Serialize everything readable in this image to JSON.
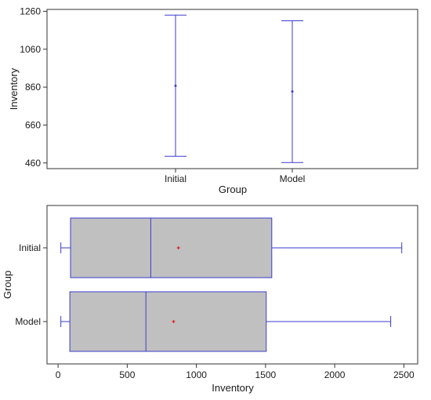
{
  "colors": {
    "series": "#3b3bcf",
    "mean_marker": "#e02020",
    "box_fill": "#c0c0c0",
    "frame": "#333333"
  },
  "chart_data": [
    {
      "type": "interval",
      "xlabel": "Group",
      "ylabel": "Inventory",
      "categories": [
        "Initial",
        "Model"
      ],
      "ylim": [
        430,
        1270
      ],
      "yticks": [
        460,
        660,
        860,
        1060,
        1260
      ],
      "series": [
        {
          "lower": [
            495,
            462
          ],
          "upper": [
            1240,
            1210
          ],
          "mean": [
            867,
            837
          ]
        }
      ]
    },
    {
      "type": "box",
      "orientation": "horizontal",
      "xlabel": "Inventory",
      "ylabel": "Group",
      "categories": [
        "Initial",
        "Model"
      ],
      "xlim": [
        -80,
        2600
      ],
      "xticks": [
        0,
        500,
        1000,
        1500,
        2000,
        2500
      ],
      "boxes": [
        {
          "min": 20,
          "q1": 90,
          "median": 670,
          "q3": 1545,
          "max": 2485,
          "mean": 870
        },
        {
          "min": 20,
          "q1": 85,
          "median": 635,
          "q3": 1505,
          "max": 2405,
          "mean": 835
        }
      ]
    }
  ]
}
